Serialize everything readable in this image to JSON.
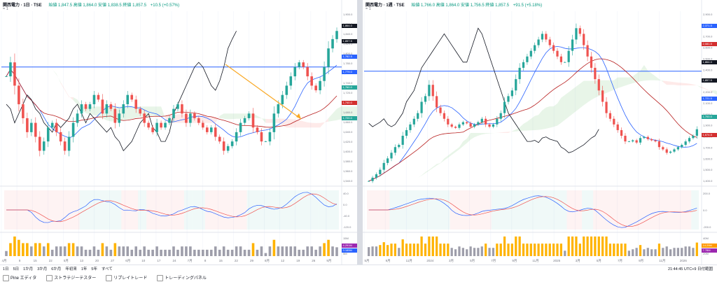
{
  "left": {
    "title": "関西電力 · 1日 · TSE",
    "ohlc": "始値 1,847.5  高値 1,864.0  安値 1,838.5  終値 1,857.5",
    "change": "+10.5 (+0.57%)",
    "subtitle": "= 1",
    "xlabels": [
      "4月",
      "8",
      "15",
      "22",
      "5月",
      "13",
      "20",
      "27",
      "6月",
      "10",
      "17",
      "24",
      "7月",
      "8",
      "15",
      "22",
      "29",
      "8月",
      "12",
      "19",
      "26",
      "9月"
    ],
    "ylabels": [
      "1,900.0",
      "1,860.0",
      "1,840.0",
      "1,820.0",
      "1,800.0",
      "1,780.0",
      "1,760.0",
      "1,740.0",
      "1,720.0",
      "1,700.0",
      "1,680.0",
      "1,660.0",
      "1,640.0",
      "1,620.0",
      "1,600.0",
      "1,580.0",
      "1,560.0",
      "1,540.0"
    ],
    "price_tags": [
      {
        "label": "1,864.0",
        "color": "#131722"
      },
      {
        "label": "1,857.5",
        "color": "#131722"
      },
      {
        "label": "1,782.5",
        "color": "#2962ff"
      },
      {
        "label": "1,779.0",
        "color": "#2962ff"
      },
      {
        "label": "1,760.0",
        "color": "#26a69a"
      },
      {
        "label": "1,740.0",
        "color": "#d32f2f"
      },
      {
        "label": "1,720.0",
        "color": "#26a69a"
      }
    ],
    "macd_labels": [
      "40.0",
      "0.0",
      "-40.0",
      "-120.0"
    ],
    "vol_labels": [
      "15M",
      "10M",
      "5M"
    ],
    "vol_tags": [
      {
        "label": "4.291M",
        "color": "#9c27b0"
      },
      {
        "label": "3.185M",
        "color": "#2962ff"
      }
    ],
    "hline_price": 1780
  },
  "right": {
    "title": "関西電力 · 1週 · TSE",
    "ohlc": "始値 1,766.0  高値 1,864.0  安値 1,756.5  終値 1,857.5",
    "change": "+91.5 (+5.18%)",
    "subtitle": "= 1",
    "xlabels": [
      "5月",
      "9月",
      "11月",
      "2024",
      "3月",
      "5月",
      "7月",
      "9月",
      "11月",
      "2025",
      "3月",
      "5月",
      "7月",
      "9月",
      "11月",
      "2026"
    ],
    "ylabels": [
      "2,900.0",
      "2,800.0",
      "2,700.0",
      "2,600.0",
      "2,500.0",
      "2,400.0",
      "2,300.0",
      "2,200.0",
      "2,100.0",
      "2,000.0",
      "1,900.0",
      "1,800.0",
      "1,700.0",
      "1,600.0",
      "1,500.0",
      "1,400.0"
    ],
    "price_tags": [
      {
        "label": "2,371.5",
        "color": "#2962ff"
      },
      {
        "label": "2,081.5",
        "color": "#d32f2f"
      },
      {
        "label": "1,864.0",
        "color": "#131722"
      },
      {
        "label": "1,857.5",
        "color": "#131722"
      },
      {
        "label": "1,721.5",
        "color": "#2962ff"
      },
      {
        "label": "1,700.0",
        "color": "#26a69a"
      },
      {
        "label": "1,674.5",
        "color": "#d32f2f"
      }
    ],
    "macd_labels": [
      "200.0",
      "0.0",
      "-200.0"
    ],
    "vol_labels": [
      "40M",
      "20M"
    ],
    "vol_tags": [
      {
        "label": "14.29M",
        "color": "#ff9800"
      },
      {
        "label": "7.78M",
        "color": "#9c27b0"
      }
    ],
    "hline_price": 2370
  },
  "bottom": {
    "ranges": [
      "1日",
      "5日",
      "1か月",
      "3か月",
      "6か月",
      "年初来",
      "1年",
      "5年",
      "すべて"
    ],
    "clock": "21:44:45 UTC+9  日付範囲",
    "tools": [
      "Pine エディタ",
      "ストラテジーテスター",
      "リプレイトレード",
      "トレーディングパネル"
    ]
  },
  "chart_data": [
    {
      "type": "candlestick",
      "title": "関西電力 · 1日 · TSE",
      "ylim": [
        1530,
        1900
      ],
      "last": {
        "open": 1847.5,
        "high": 1864.0,
        "low": 1838.5,
        "close": 1857.5
      },
      "horizontal_line": 1780,
      "closes": [
        1760,
        1790,
        1740,
        1700,
        1670,
        1640,
        1660,
        1630,
        1600,
        1620,
        1650,
        1660,
        1640,
        1620,
        1600,
        1630,
        1660,
        1680,
        1700,
        1690,
        1700,
        1720,
        1710,
        1680,
        1700,
        1690,
        1660,
        1680,
        1700,
        1720,
        1710,
        1690,
        1680,
        1660,
        1650,
        1640,
        1660,
        1650,
        1660,
        1670,
        1690,
        1700,
        1680,
        1660,
        1680,
        1670,
        1660,
        1650,
        1640,
        1650,
        1630,
        1620,
        1600,
        1610,
        1620,
        1640,
        1660,
        1670,
        1680,
        1650,
        1640,
        1620,
        1620,
        1640,
        1680,
        1700,
        1720,
        1740,
        1760,
        1780,
        1790,
        1780,
        1760,
        1740,
        1730,
        1750,
        1780,
        1820,
        1840,
        1857.5
      ]
    },
    {
      "type": "candlestick",
      "title": "関西電力 · 1週 · TSE",
      "ylim": [
        1380,
        2900
      ],
      "last": {
        "open": 1766.0,
        "high": 1864.0,
        "low": 1756.5,
        "close": 1857.5
      },
      "horizontal_line": 2370,
      "closes": [
        1400,
        1430,
        1460,
        1500,
        1560,
        1600,
        1650,
        1700,
        1720,
        1800,
        1850,
        1900,
        1950,
        2000,
        2100,
        2150,
        2250,
        2150,
        2050,
        2000,
        1950,
        1900,
        1880,
        1870,
        1900,
        1920,
        1910,
        1880,
        1900,
        1920,
        1950,
        1900,
        1880,
        1900,
        1950,
        2000,
        2100,
        2150,
        2200,
        2300,
        2400,
        2450,
        2500,
        2550,
        2600,
        2650,
        2700,
        2650,
        2600,
        2550,
        2500,
        2450,
        2450,
        2550,
        2650,
        2750,
        2700,
        2600,
        2500,
        2400,
        2300,
        2200,
        2100,
        2000,
        1950,
        1900,
        1850,
        1800,
        1750,
        1750,
        1760,
        1740,
        1780,
        1790,
        1770,
        1760,
        1750,
        1700,
        1680,
        1650,
        1660,
        1680,
        1700,
        1720,
        1750,
        1780,
        1800,
        1857.5
      ]
    }
  ]
}
